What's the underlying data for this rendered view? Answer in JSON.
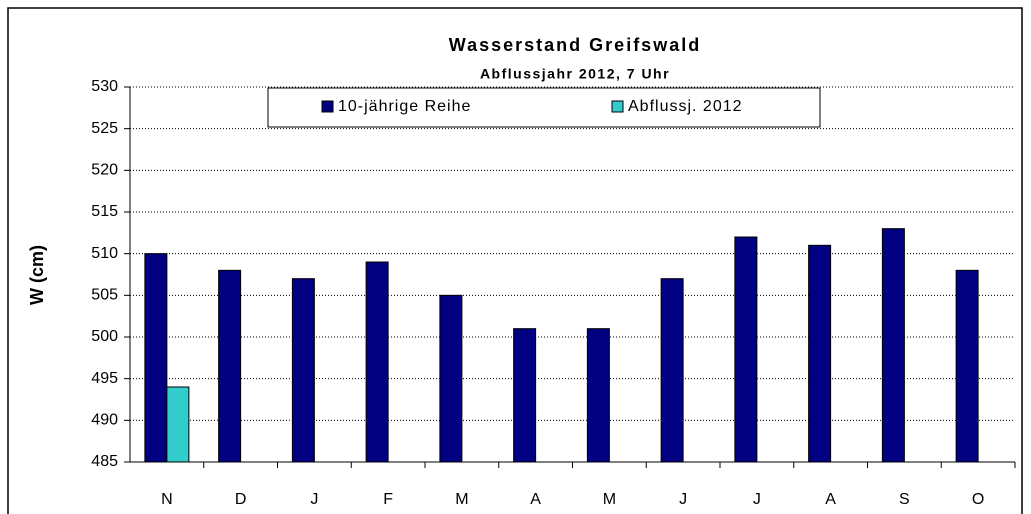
{
  "chart_data": {
    "type": "bar",
    "title": "Wasserstand Greifswald",
    "subtitle": "Abflussjahr 2012, 7 Uhr",
    "y_label": "W (cm)",
    "categories": [
      "N",
      "D",
      "J",
      "F",
      "M",
      "A",
      "M",
      "J",
      "J",
      "A",
      "S",
      "O"
    ],
    "series": [
      {
        "name": "10-jährige Reihe",
        "color": "#000080",
        "values": [
          510,
          508,
          507,
          509,
          505,
          501,
          501,
          507,
          512,
          511,
          513,
          508
        ]
      },
      {
        "name": "Abflussj. 2012",
        "color": "#33cccc",
        "values": [
          494,
          null,
          null,
          null,
          null,
          null,
          null,
          null,
          null,
          null,
          null,
          null
        ]
      }
    ],
    "ylim": [
      485,
      530
    ],
    "yticks": [
      485,
      490,
      495,
      500,
      505,
      510,
      515,
      520,
      525,
      530
    ],
    "grid": true,
    "legend": "top"
  }
}
